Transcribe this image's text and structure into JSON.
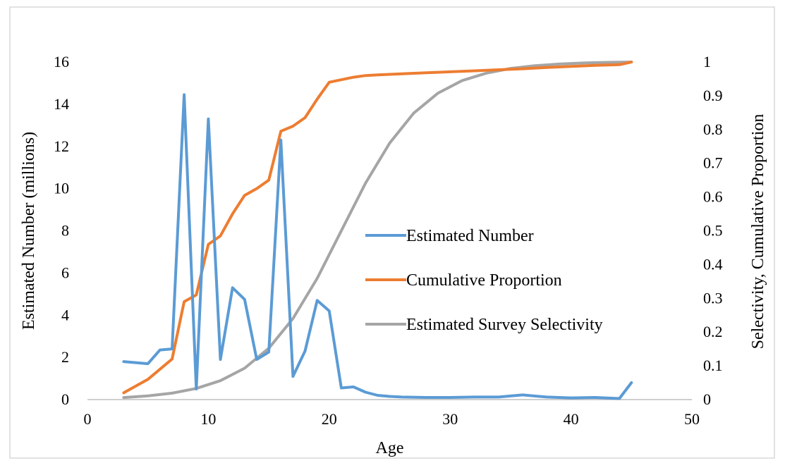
{
  "chart_data": {
    "type": "line",
    "title": "",
    "xlabel": "Age",
    "ylabel": "Estimated Number (millions)",
    "y2label": "Selectivity, Cumulative Proportion",
    "xlim": [
      0,
      50
    ],
    "ylim": [
      0,
      16
    ],
    "y2lim": [
      0,
      1
    ],
    "x_ticks": [
      0,
      10,
      20,
      30,
      40,
      50
    ],
    "y_ticks": [
      0,
      2,
      4,
      6,
      8,
      10,
      12,
      14,
      16
    ],
    "y2_ticks": [
      0,
      0.1,
      0.2,
      0.3,
      0.4,
      0.5,
      0.6,
      0.7,
      0.8,
      0.9,
      1
    ],
    "x_tick_labels": [
      "0",
      "10",
      "20",
      "30",
      "40",
      "50"
    ],
    "y_tick_labels": [
      "0",
      "2",
      "4",
      "6",
      "8",
      "10",
      "12",
      "14",
      "16"
    ],
    "y2_tick_labels": [
      "0",
      "0.1",
      "0.2",
      "0.3",
      "0.4",
      "0.5",
      "0.6",
      "0.7",
      "0.8",
      "0.9",
      "1"
    ],
    "grid": false,
    "legend_position": "center-right",
    "series": [
      {
        "name": "Estimated Number",
        "axis": "left",
        "color": "#5B9BD5",
        "x": [
          3,
          5,
          6,
          7,
          8,
          9,
          10,
          11,
          12,
          13,
          14,
          15,
          16,
          17,
          18,
          19,
          20,
          21,
          22,
          23,
          24,
          25,
          26,
          28,
          30,
          32,
          34,
          36,
          38,
          40,
          42,
          44,
          45
        ],
        "values": [
          1.8,
          1.7,
          2.35,
          2.4,
          14.45,
          0.5,
          13.3,
          1.9,
          5.3,
          4.75,
          1.9,
          2.25,
          12.3,
          1.1,
          2.3,
          4.7,
          4.2,
          0.55,
          0.6,
          0.35,
          0.2,
          0.15,
          0.12,
          0.1,
          0.1,
          0.12,
          0.12,
          0.22,
          0.12,
          0.08,
          0.1,
          0.05,
          0.8
        ]
      },
      {
        "name": "Cumulative Proportion",
        "axis": "right",
        "color": "#ED7D31",
        "x": [
          3,
          5,
          7,
          8,
          9,
          10,
          11,
          12,
          13,
          14,
          15,
          16,
          17,
          18,
          19,
          20,
          22,
          23,
          24,
          26,
          28,
          30,
          32,
          34,
          36,
          38,
          40,
          42,
          44,
          45
        ],
        "values": [
          0.02,
          0.06,
          0.12,
          0.29,
          0.31,
          0.46,
          0.485,
          0.55,
          0.605,
          0.625,
          0.65,
          0.795,
          0.81,
          0.835,
          0.89,
          0.94,
          0.955,
          0.96,
          0.962,
          0.965,
          0.968,
          0.971,
          0.974,
          0.977,
          0.98,
          0.984,
          0.987,
          0.99,
          0.992,
          1.0
        ]
      },
      {
        "name": "Estimated Survey Selectivity",
        "axis": "right",
        "color": "#A5A5A5",
        "x": [
          3,
          5,
          7,
          9,
          11,
          13,
          15,
          17,
          19,
          21,
          23,
          25,
          27,
          29,
          31,
          33,
          35,
          37,
          39,
          41,
          43,
          45
        ],
        "values": [
          0.006,
          0.011,
          0.019,
          0.033,
          0.056,
          0.093,
          0.152,
          0.24,
          0.359,
          0.5,
          0.641,
          0.76,
          0.849,
          0.908,
          0.945,
          0.967,
          0.981,
          0.989,
          0.994,
          0.997,
          0.999,
          1.0
        ]
      }
    ]
  }
}
